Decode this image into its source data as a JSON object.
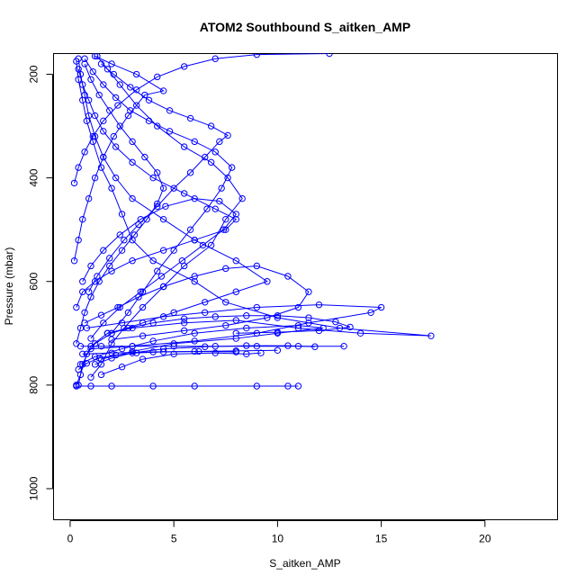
{
  "chart_data": {
    "type": "line",
    "title": "ATOM2 Southbound S_aitken_AMP",
    "xlabel": "S_aitken_AMP",
    "ylabel": "Pressure (mbar)",
    "xlim": [
      -0.8,
      23.5
    ],
    "ylim": [
      1060,
      160
    ],
    "x_ticks": [
      0,
      5,
      10,
      15,
      20
    ],
    "y_ticks": [
      200,
      400,
      600,
      800,
      1000
    ],
    "grid": false,
    "legend": "none",
    "color": "#0000ff",
    "markers": "open-circle",
    "series": [
      {
        "points": [
          [
            0.3,
            800
          ],
          [
            0.5,
            780
          ],
          [
            0.8,
            740
          ],
          [
            1.2,
            720
          ],
          [
            2.0,
            700
          ],
          [
            3.5,
            680
          ],
          [
            5.0,
            660
          ],
          [
            6.5,
            640
          ],
          [
            8.0,
            620
          ],
          [
            9.5,
            600
          ],
          [
            8.0,
            560
          ],
          [
            6.0,
            520
          ],
          [
            4.5,
            480
          ],
          [
            3.0,
            440
          ],
          [
            2.2,
            400
          ],
          [
            1.6,
            360
          ],
          [
            1.2,
            320
          ],
          [
            0.9,
            280
          ],
          [
            0.7,
            240
          ],
          [
            0.5,
            200
          ],
          [
            0.4,
            170
          ]
        ]
      },
      {
        "points": [
          [
            0.4,
            800
          ],
          [
            0.6,
            760
          ],
          [
            1.0,
            725
          ],
          [
            1.8,
            700
          ],
          [
            3.0,
            690
          ],
          [
            5.5,
            680
          ],
          [
            8.0,
            675
          ],
          [
            11.0,
            690
          ],
          [
            14.0,
            700
          ],
          [
            17.4,
            705
          ],
          [
            13.0,
            690
          ],
          [
            10.0,
            670
          ],
          [
            7.5,
            640
          ],
          [
            6.0,
            600
          ],
          [
            4.0,
            560
          ],
          [
            3.0,
            520
          ],
          [
            2.5,
            470
          ],
          [
            2.0,
            420
          ],
          [
            1.5,
            380
          ],
          [
            1.1,
            330
          ],
          [
            0.8,
            290
          ],
          [
            0.6,
            250
          ],
          [
            0.4,
            210
          ],
          [
            0.3,
            175
          ]
        ]
      },
      {
        "points": [
          [
            0.3,
            802
          ],
          [
            1.0,
            802
          ],
          [
            2.0,
            802
          ],
          [
            4.0,
            802
          ],
          [
            6.0,
            802
          ],
          [
            9.0,
            802
          ],
          [
            10.5,
            802
          ],
          [
            11.0,
            802
          ]
        ]
      },
      {
        "points": [
          [
            0.5,
            725
          ],
          [
            1.5,
            725
          ],
          [
            3.0,
            725
          ],
          [
            5.0,
            725
          ],
          [
            7.0,
            725
          ],
          [
            9.0,
            725
          ],
          [
            11.0,
            725
          ],
          [
            13.2,
            725
          ]
        ]
      },
      {
        "points": [
          [
            0.6,
            740
          ],
          [
            2.0,
            738
          ],
          [
            4.0,
            736
          ],
          [
            6.0,
            735
          ],
          [
            8.0,
            734
          ],
          [
            10.0,
            733
          ]
        ]
      },
      {
        "points": [
          [
            0.8,
            690
          ],
          [
            2.5,
            680
          ],
          [
            4.5,
            668
          ],
          [
            6.5,
            660
          ],
          [
            9.0,
            650
          ],
          [
            12.0,
            645
          ],
          [
            15.0,
            650
          ],
          [
            14.5,
            660
          ],
          [
            11.5,
            680
          ],
          [
            9.0,
            700
          ],
          [
            6.0,
            715
          ],
          [
            3.0,
            725
          ],
          [
            1.0,
            730
          ]
        ]
      },
      {
        "points": [
          [
            1.0,
            785
          ],
          [
            1.5,
            760
          ],
          [
            2.0,
            720
          ],
          [
            2.6,
            690
          ],
          [
            3.5,
            650
          ],
          [
            4.5,
            610
          ],
          [
            5.5,
            570
          ],
          [
            6.8,
            530
          ],
          [
            7.5,
            480
          ],
          [
            8.3,
            440
          ],
          [
            7.6,
            400
          ],
          [
            6.8,
            370
          ],
          [
            5.5,
            340
          ],
          [
            4.2,
            300
          ],
          [
            3.2,
            260
          ],
          [
            2.4,
            220
          ],
          [
            1.8,
            190
          ],
          [
            1.3,
            165
          ]
        ]
      },
      {
        "points": [
          [
            0.2,
            560
          ],
          [
            0.4,
            520
          ],
          [
            0.6,
            480
          ],
          [
            0.9,
            440
          ],
          [
            1.2,
            400
          ],
          [
            1.6,
            360
          ],
          [
            2.1,
            320
          ],
          [
            2.8,
            280
          ],
          [
            3.6,
            240
          ],
          [
            4.5,
            232
          ],
          [
            3.2,
            200
          ],
          [
            2.0,
            180
          ],
          [
            1.2,
            165
          ]
        ]
      },
      {
        "points": [
          [
            0.3,
            650
          ],
          [
            0.6,
            620
          ],
          [
            1.2,
            600
          ],
          [
            2.0,
            580
          ],
          [
            3.0,
            560
          ],
          [
            4.5,
            540
          ],
          [
            6.0,
            520
          ],
          [
            7.5,
            500
          ],
          [
            8.0,
            480
          ],
          [
            7.0,
            460
          ],
          [
            5.5,
            430
          ],
          [
            4.0,
            400
          ],
          [
            3.0,
            370
          ],
          [
            2.2,
            340
          ],
          [
            1.6,
            310
          ],
          [
            1.2,
            280
          ],
          [
            0.9,
            250
          ],
          [
            0.6,
            220
          ],
          [
            0.4,
            190
          ]
        ]
      },
      {
        "points": [
          [
            0.5,
            760
          ],
          [
            1.2,
            745
          ],
          [
            2.5,
            730
          ],
          [
            4.0,
            715
          ],
          [
            6.0,
            700
          ],
          [
            8.5,
            690
          ],
          [
            11.0,
            685
          ],
          [
            12.2,
            690
          ],
          [
            10.0,
            700
          ],
          [
            8.0,
            710
          ],
          [
            5.0,
            720
          ],
          [
            3.0,
            735
          ],
          [
            1.5,
            750
          ]
        ]
      },
      {
        "points": [
          [
            1.5,
            780
          ],
          [
            2.5,
            765
          ],
          [
            3.5,
            750
          ],
          [
            5.0,
            740
          ],
          [
            7.0,
            738
          ],
          [
            8.5,
            740
          ],
          [
            9.2,
            738
          ]
        ]
      },
      {
        "points": [
          [
            0.7,
            680
          ],
          [
            1.5,
            665
          ],
          [
            2.3,
            650
          ],
          [
            3.3,
            630
          ],
          [
            4.5,
            610
          ],
          [
            6.0,
            590
          ],
          [
            7.5,
            575
          ],
          [
            9.0,
            570
          ],
          [
            10.5,
            590
          ],
          [
            11.5,
            620
          ],
          [
            11.0,
            650
          ],
          [
            9.5,
            670
          ],
          [
            7.5,
            685
          ],
          [
            5.5,
            695
          ],
          [
            3.5,
            705
          ],
          [
            2.0,
            712
          ]
        ]
      },
      {
        "points": [
          [
            0.2,
            410
          ],
          [
            0.4,
            380
          ],
          [
            0.7,
            350
          ],
          [
            1.1,
            320
          ],
          [
            1.6,
            290
          ],
          [
            2.3,
            260
          ],
          [
            3.2,
            230
          ],
          [
            4.2,
            205
          ],
          [
            5.5,
            185
          ],
          [
            7.0,
            170
          ],
          [
            9.0,
            162
          ],
          [
            12.5,
            160
          ]
        ]
      },
      {
        "points": [
          [
            0.9,
            620
          ],
          [
            1.3,
            590
          ],
          [
            1.9,
            555
          ],
          [
            2.6,
            520
          ],
          [
            3.3,
            490
          ],
          [
            4.2,
            455
          ],
          [
            5.0,
            420
          ],
          [
            5.8,
            390
          ],
          [
            6.5,
            360
          ],
          [
            7.2,
            330
          ],
          [
            7.6,
            318
          ],
          [
            6.8,
            300
          ],
          [
            5.8,
            285
          ],
          [
            4.8,
            270
          ],
          [
            3.8,
            250
          ],
          [
            2.9,
            225
          ],
          [
            2.1,
            200
          ],
          [
            1.5,
            180
          ]
        ]
      },
      {
        "points": [
          [
            1.8,
            700
          ],
          [
            2.8,
            690
          ],
          [
            4.0,
            680
          ],
          [
            5.5,
            672
          ],
          [
            7.0,
            668
          ],
          [
            8.5,
            666
          ],
          [
            10.0,
            666
          ],
          [
            11.5,
            670
          ],
          [
            12.8,
            678
          ],
          [
            13.5,
            688
          ],
          [
            12.0,
            695
          ],
          [
            10.0,
            698
          ],
          [
            8.0,
            700
          ]
        ]
      },
      {
        "points": [
          [
            0.4,
            770
          ],
          [
            0.8,
            758
          ],
          [
            1.4,
            748
          ],
          [
            2.2,
            742
          ],
          [
            3.2,
            738
          ],
          [
            4.5,
            736
          ],
          [
            6.2,
            735
          ],
          [
            8.0,
            736
          ]
        ]
      },
      {
        "points": [
          [
            2.0,
            700
          ],
          [
            2.8,
            660
          ],
          [
            3.5,
            620
          ],
          [
            4.2,
            580
          ],
          [
            5.0,
            540
          ],
          [
            5.8,
            500
          ],
          [
            6.6,
            460
          ],
          [
            7.3,
            420
          ],
          [
            7.8,
            380
          ],
          [
            7.0,
            350
          ],
          [
            6.0,
            330
          ],
          [
            4.8,
            310
          ],
          [
            3.8,
            290
          ],
          [
            2.9,
            270
          ],
          [
            2.2,
            245
          ],
          [
            1.6,
            220
          ],
          [
            1.1,
            195
          ],
          [
            0.7,
            170
          ]
        ]
      },
      {
        "points": [
          [
            0.3,
            720
          ],
          [
            0.5,
            690
          ],
          [
            0.7,
            660
          ],
          [
            1.0,
            630
          ],
          [
            1.4,
            600
          ],
          [
            1.9,
            570
          ],
          [
            2.5,
            540
          ],
          [
            3.1,
            510
          ],
          [
            3.7,
            480
          ],
          [
            4.2,
            450
          ],
          [
            4.5,
            420
          ],
          [
            4.2,
            390
          ],
          [
            3.6,
            360
          ],
          [
            3.0,
            330
          ],
          [
            2.4,
            300
          ],
          [
            1.9,
            270
          ],
          [
            1.4,
            240
          ],
          [
            1.0,
            210
          ],
          [
            0.7,
            180
          ]
        ]
      },
      {
        "points": [
          [
            1.2,
            760
          ],
          [
            2.0,
            748
          ],
          [
            3.0,
            738
          ],
          [
            4.5,
            730
          ],
          [
            6.5,
            726
          ],
          [
            8.5,
            724
          ],
          [
            10.5,
            724
          ],
          [
            11.8,
            726
          ]
        ]
      },
      {
        "points": [
          [
            0.6,
            600
          ],
          [
            1.0,
            570
          ],
          [
            1.6,
            540
          ],
          [
            2.4,
            510
          ],
          [
            3.4,
            480
          ],
          [
            4.6,
            455
          ],
          [
            6.0,
            440
          ],
          [
            7.2,
            445
          ],
          [
            8.0,
            470
          ],
          [
            7.4,
            500
          ],
          [
            6.4,
            530
          ],
          [
            5.4,
            560
          ],
          [
            4.4,
            590
          ],
          [
            3.4,
            620
          ],
          [
            2.4,
            650
          ],
          [
            1.6,
            680
          ],
          [
            1.0,
            710
          ]
        ]
      }
    ]
  }
}
